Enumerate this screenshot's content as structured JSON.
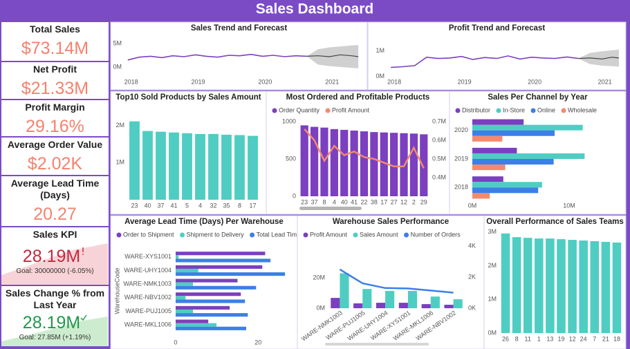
{
  "dashboard_title": "Sales Dashboard",
  "kpi_cards": [
    {
      "label": "Total Sales",
      "value": "$73.14M",
      "color": "#f4836d"
    },
    {
      "label": "Net Profit",
      "value": "$21.33M",
      "color": "#f4836d"
    },
    {
      "label": "Profit Margin",
      "value": "29.16%",
      "color": "#f4836d"
    },
    {
      "label": "Average Order Value",
      "value": "$2.02K",
      "color": "#f4836d"
    },
    {
      "label": "Average Lead Time (Days)",
      "value": "20.27",
      "color": "#f4836d"
    },
    {
      "label": "Sales KPI",
      "value": "28.19M",
      "goal": "Goal: 30000000 (-6.05%)",
      "color": "#c4283f"
    },
    {
      "label": "Sales Change % from Last Year",
      "value": "28.19M",
      "goal": "Goal: 27.85M (+1.19%)",
      "color": "#1f9a48"
    }
  ],
  "chart_data": [
    {
      "type": "line",
      "title": "Sales Trend and Forecast",
      "x": [
        2017.95,
        2018.12,
        2018.29,
        2018.46,
        2018.62,
        2018.79,
        2018.96,
        2019.12,
        2019.29,
        2019.46,
        2019.62,
        2019.79,
        2019.96,
        2020.12,
        2020.29,
        2020.46,
        2020.62
      ],
      "xlim": [
        2017.9,
        2021.41
      ],
      "xticks": [
        2018,
        2019,
        2020,
        2021
      ],
      "ylim": [
        -900000,
        6200000
      ],
      "yticks": [
        {
          "value": 0,
          "label": "0M"
        },
        {
          "value": 5000000,
          "label": "5M"
        }
      ],
      "series": [
        {
          "color": "#7b3fbf",
          "values": [
            1500000,
            2100000,
            2300000,
            2000000,
            2400000,
            2200000,
            2600000,
            2300000,
            2100000,
            2500000,
            2400000,
            2700000,
            2300000,
            2500000,
            2200000,
            2400000,
            2300000
          ]
        }
      ],
      "forecast": {
        "color": "#444444",
        "band_color": "#d0d0d0",
        "x": [
          2020.62,
          2020.79,
          2020.96,
          2021.12,
          2021.29,
          2021.39
        ],
        "values": [
          2300000,
          2400000,
          2200000,
          2600000,
          2400000,
          2200000
        ],
        "lower": [
          2300000,
          500000,
          200000,
          0,
          -200000,
          -300000
        ],
        "upper": [
          2300000,
          3800000,
          4200000,
          4400000,
          4600000,
          4700000
        ]
      }
    },
    {
      "type": "line",
      "title": "Profit Trend and Forecast",
      "x": [
        2017.95,
        2018.12,
        2018.29,
        2018.46,
        2018.62,
        2018.79,
        2018.96,
        2019.12,
        2019.29,
        2019.46,
        2019.62,
        2019.79,
        2019.96,
        2020.12,
        2020.29,
        2020.46,
        2020.62
      ],
      "xlim": [
        2017.9,
        2021.25
      ],
      "xticks": [
        2018,
        2019,
        2020,
        2021
      ],
      "ylim": [
        -200000,
        1500000
      ],
      "yticks": [
        {
          "value": 0,
          "label": "0M"
        },
        {
          "value": 1000000,
          "label": "1M"
        }
      ],
      "series": [
        {
          "color": "#7b3fbf",
          "values": [
            350000,
            380000,
            420000,
            750000,
            700000,
            720000,
            780000,
            660000,
            740000,
            700000,
            800000,
            680000,
            750000,
            720000,
            700000,
            760000,
            700000
          ]
        }
      ],
      "forecast": {
        "color": "#444444",
        "band_color": "#d0d0d0",
        "x": [
          2020.62,
          2020.79,
          2020.96,
          2021.1,
          2021.2
        ],
        "values": [
          700000,
          720000,
          680000,
          750000,
          720000
        ],
        "lower": [
          700000,
          480000,
          420000,
          400000,
          380000
        ],
        "upper": [
          700000,
          920000,
          980000,
          1020000,
          1050000
        ]
      }
    },
    {
      "type": "bar",
      "title": "Top10 Sold Products by Sales Amount",
      "categories": [
        "23",
        "40",
        "37",
        "41",
        "5",
        "4",
        "32",
        "35",
        "8",
        "17"
      ],
      "ylim": [
        0,
        2400000
      ],
      "yticks": [
        {
          "value": 1000000,
          "label": "1M"
        },
        {
          "value": 2000000,
          "label": "2M"
        }
      ],
      "series": [
        {
          "color": "#4fcdc2",
          "values": [
            2110000,
            1850000,
            1830000,
            1810000,
            1790000,
            1770000,
            1770000,
            1750000,
            1740000,
            1720000
          ]
        }
      ]
    },
    {
      "type": "bar",
      "title": "Most Ordered and Profitable Products",
      "categories": [
        "23",
        "37",
        "8",
        "4",
        "40",
        "41",
        "22",
        "38",
        "17",
        "27",
        "12",
        "2",
        "29"
      ],
      "ylim": [
        0,
        1000
      ],
      "yticks": [
        0,
        500,
        1000
      ],
      "y2lim": [
        300000,
        700000
      ],
      "y2ticks": [
        {
          "value": 400000,
          "label": "0.4M"
        },
        {
          "value": 500000,
          "label": "0.5M"
        },
        {
          "value": 600000,
          "label": "0.6M"
        },
        {
          "value": 700000,
          "label": "0.7M"
        }
      ],
      "series": [
        {
          "name": "Order Quantity",
          "color": "#7b3fbf",
          "values": [
            950,
            930,
            920,
            900,
            890,
            880,
            870,
            860,
            855,
            850,
            845,
            840,
            830
          ]
        },
        {
          "name": "Profit Amount",
          "color": "#f4896f",
          "type": "line",
          "axis": "y2",
          "values": [
            660000,
            600000,
            490000,
            570000,
            520000,
            540000,
            510000,
            500000,
            480000,
            460000,
            460000,
            560000,
            450000
          ]
        }
      ]
    },
    {
      "type": "hbar",
      "title": "Sales Per Channel by Year",
      "categories": [
        "2020",
        "2019",
        "2018"
      ],
      "xlim": [
        0,
        15000000
      ],
      "xticks": [
        {
          "value": 0,
          "label": "0M"
        },
        {
          "value": 10000000,
          "label": "10M"
        }
      ],
      "series": [
        {
          "name": "Distributor",
          "color": "#7b3fbf",
          "values": [
            5300000,
            4600000,
            3200000
          ]
        },
        {
          "name": "In-Store",
          "color": "#4fcdc2",
          "values": [
            11400000,
            11600000,
            7200000
          ]
        },
        {
          "name": "Online",
          "color": "#3b7fe8",
          "values": [
            8500000,
            8400000,
            6800000
          ]
        },
        {
          "name": "Wholesale",
          "color": "#f4896f",
          "values": [
            3100000,
            3400000,
            1800000
          ]
        }
      ]
    },
    {
      "type": "hbar",
      "title": "Average Lead Time (Days) Per Warehouse",
      "y_label": "WarehouseCode",
      "categories": [
        "WARE-XYS1001",
        "WARE-UHY1004",
        "WARE-NMK1003",
        "WARE-NBV1002",
        "WARE-PUJ1005",
        "WARE-MKL1006"
      ],
      "xlim": [
        0,
        28
      ],
      "xticks": [
        0,
        20
      ],
      "series": [
        {
          "name": "Order to Shipment",
          "color": "#7b3fbf",
          "values": [
            21.7,
            21,
            15,
            15.8,
            13.1,
            7.9
          ]
        },
        {
          "name": "Shipment to Delivery",
          "color": "#4fcdc2",
          "values": [
            0.7,
            5.5,
            4.2,
            2.4,
            4.2,
            9.9
          ]
        },
        {
          "name": "Total Lead Time",
          "color": "#3b7fe8",
          "values": [
            23,
            26.5,
            19.5,
            16.8,
            17.5,
            17.1
          ]
        }
      ]
    },
    {
      "type": "bar",
      "title": "Warehouse Sales Performance",
      "categories": [
        "WARE-NMK1003",
        "WARE-PUJ1005",
        "WARE-UHY1004",
        "WARE-XYS1001",
        "WARE-MKL1006",
        "WARE-NBV1002"
      ],
      "ylim": [
        0,
        41000000
      ],
      "yticks": [
        {
          "value": 0,
          "label": "0M"
        },
        {
          "value": 20000000,
          "label": "20M"
        }
      ],
      "y2lim": [
        0,
        4000
      ],
      "y2ticks": [
        {
          "value": 0,
          "label": "0K"
        },
        {
          "value": 2000,
          "label": "2K"
        },
        {
          "value": 4000,
          "label": "4K"
        }
      ],
      "series": [
        {
          "name": "Profit Amount",
          "color": "#7b3fbf",
          "values": [
            6800000,
            3200000,
            3600000,
            3600000,
            2700000,
            2300000
          ]
        },
        {
          "name": "Sales Amount",
          "color": "#4fcdc2",
          "values": [
            23000000,
            12700000,
            11400000,
            11400000,
            7700000,
            5900000
          ]
        },
        {
          "name": "Number of Orders",
          "color": "#3b7fe8",
          "type": "line",
          "axis": "y2",
          "values": [
            2500,
            1600,
            1300,
            1270,
            1140,
            1000
          ]
        }
      ]
    },
    {
      "type": "bar",
      "title": "Overall Performance of Sales Teams",
      "categories": [
        "26",
        "8",
        "11",
        "1",
        "13",
        "19",
        "12",
        "24",
        "7",
        "21",
        "18"
      ],
      "ylim": [
        0,
        3120000
      ],
      "yticks": [
        {
          "value": 0,
          "label": "0M"
        },
        {
          "value": 1000000,
          "label": "1M"
        },
        {
          "value": 2000000,
          "label": "2M"
        },
        {
          "value": 3000000,
          "label": "3M"
        }
      ],
      "series": [
        {
          "color": "#4fcdc2",
          "values": [
            2960000,
            2850000,
            2830000,
            2810000,
            2810000,
            2790000,
            2770000,
            2750000,
            2730000,
            2710000,
            2690000
          ]
        }
      ]
    }
  ]
}
